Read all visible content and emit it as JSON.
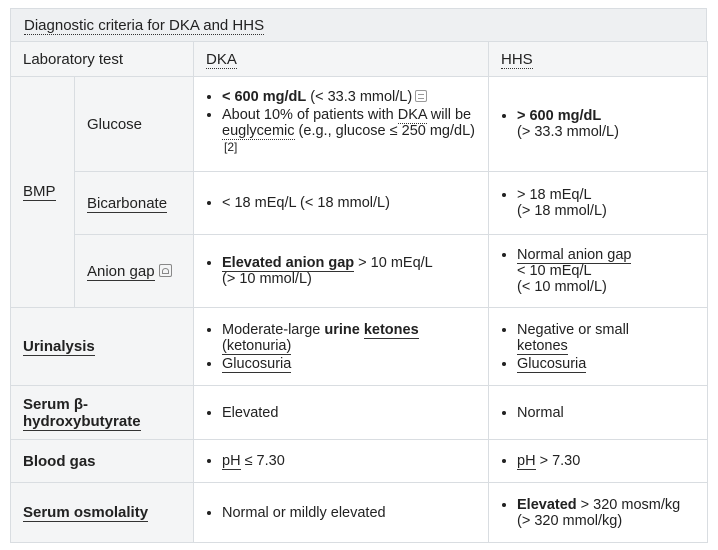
{
  "caption": "Diagnostic criteria for DKA and HHS",
  "header": {
    "test": "Laboratory test",
    "dka": "DKA",
    "hhs": "HHS"
  },
  "bmp": {
    "label": "BMP",
    "glucose": {
      "label": "Glucose",
      "dka": {
        "b1_bold": "< 600 mg/dL",
        "b1_rest": " (< 33.3 mmol/L)",
        "b2_a": "About 10% of patients with ",
        "b2_dka": "DKA",
        "b2_b": " will be ",
        "b2_eu": "euglycemic",
        "b2_c": " (e.g., glucose ≤ 250 mg/dL)",
        "b2_ref": "[2]"
      },
      "hhs": {
        "b1_bold": "> 600 mg/dL",
        "b1_rest": "(> 33.3 mmol/L)"
      }
    },
    "bicarbonate": {
      "label": "Bicarbonate",
      "dka": "< 18 mEq/L (< 18 mmol/L)",
      "hhs_l1": "> 18 mEq/L",
      "hhs_l2": "(> 18 mmol/L)"
    },
    "anion_gap": {
      "label": "Anion gap",
      "dka_bold": "Elevated anion gap",
      "dka_rest": " > 10 mEq/L",
      "dka_l2": "(> 10 mmol/L)",
      "hhs_link": "Normal anion gap",
      "hhs_l2": "< 10 mEq/L",
      "hhs_l3": "(< 10 mmol/L)"
    }
  },
  "urinalysis": {
    "label": "Urinalysis",
    "dka": {
      "b1_a": "Moderate-large ",
      "b1_bold1": "urine",
      "b1_sp": " ",
      "b1_bold2": "ketones",
      "b1_paren": "(ketonuria)",
      "b2": "Glucosuria"
    },
    "hhs": {
      "b1_a": "Negative or small",
      "b1_link": "ketones",
      "b2": "Glucosuria"
    }
  },
  "serum_bhb": {
    "label_a": "Serum β-",
    "label_b": "hydroxybutyrate",
    "dka": "Elevated",
    "hhs": "Normal"
  },
  "blood_gas": {
    "label": "Blood gas",
    "dka_ph": "pH",
    "dka_rest": " ≤ 7.30",
    "hhs_ph": "pH",
    "hhs_rest": " > 7.30"
  },
  "serum_osm": {
    "label": "Serum osmolality",
    "dka": "Normal or mildly elevated",
    "hhs_bold": "Elevated",
    "hhs_rest": " > 320 mosm/kg",
    "hhs_l2": "(> 320 mmol/kg)"
  }
}
